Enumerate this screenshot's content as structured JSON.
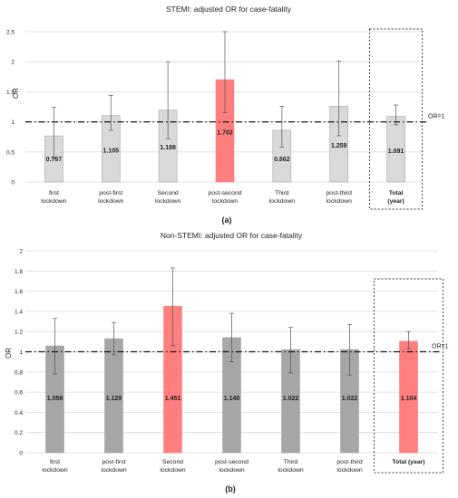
{
  "chart_data": [
    {
      "type": "bar",
      "panel_label": "(a)",
      "title": "STEMI: adjusted   OR for case-fatality",
      "ylabel": "OR",
      "ylim": [
        0,
        2.5
      ],
      "yticks": [
        "0",
        "0.5",
        "1",
        "1.5",
        "2",
        "2.5"
      ],
      "ytick_values": [
        0,
        0.5,
        1,
        1.5,
        2,
        2.5
      ],
      "categories": [
        [
          "first",
          "lockdown"
        ],
        [
          "post-first",
          "lockdown"
        ],
        [
          "Second",
          "lockdown"
        ],
        [
          "post-second",
          "lockdown"
        ],
        [
          "Third",
          "lockdown"
        ],
        [
          "post-third",
          "lockdown"
        ],
        [
          "Total",
          "(year)"
        ]
      ],
      "bold_categories": [
        6
      ],
      "values": [
        0.767,
        1.105,
        1.198,
        1.702,
        0.862,
        1.259,
        1.091
      ],
      "value_labels": [
        "0.767",
        "1.105",
        "1.198",
        "1.702",
        "0.862",
        "1.259",
        "1.091"
      ],
      "ci_low": [
        0.4,
        0.86,
        0.72,
        1.15,
        0.58,
        0.77,
        0.95
      ],
      "ci_high": [
        1.24,
        1.44,
        2.0,
        2.5,
        1.26,
        2.01,
        1.28
      ],
      "highlight": [
        3
      ],
      "boxed": [
        6
      ],
      "reference_line": {
        "value": 1,
        "label": "OR=1"
      },
      "colors": {
        "bar": "#d9d9d9",
        "bar_stroke": "#a6a6a6",
        "highlight": "#ff7f7f",
        "highlight_stroke": "#ff7f7f",
        "errbar": "#555555"
      }
    },
    {
      "type": "bar",
      "panel_label": "(b)",
      "title": "Non-STEMI: adjusted   OR for case-fatality",
      "ylabel": "OR",
      "ylim": [
        0,
        2
      ],
      "yticks": [
        "0",
        "0.2",
        "0.4",
        "0.6",
        "0.8",
        "1",
        "1.2",
        "1.4",
        "1.6",
        "1.8",
        "2"
      ],
      "ytick_values": [
        0,
        0.2,
        0.4,
        0.6,
        0.8,
        1,
        1.2,
        1.4,
        1.6,
        1.8,
        2
      ],
      "categories": [
        [
          "first",
          "lockdown"
        ],
        [
          "post-first",
          "lockdown"
        ],
        [
          "Second",
          "lockdown"
        ],
        [
          "post-second",
          "lockdown"
        ],
        [
          "Third",
          "lockdown"
        ],
        [
          "post-third",
          "lockdown"
        ],
        [
          "Total (year)"
        ]
      ],
      "bold_categories": [
        6
      ],
      "values": [
        1.058,
        1.129,
        1.451,
        1.14,
        1.022,
        1.022,
        1.104
      ],
      "value_labels": [
        "1.058",
        "1.129",
        "1.451",
        "1.140",
        "1.022",
        "1.022",
        "1.104"
      ],
      "ci_low": [
        0.78,
        0.97,
        1.06,
        0.9,
        0.79,
        0.77,
        1.03
      ],
      "ci_high": [
        1.33,
        1.29,
        1.83,
        1.38,
        1.24,
        1.27,
        1.2
      ],
      "highlight": [
        2,
        6
      ],
      "boxed": [
        6
      ],
      "reference_line": {
        "value": 1,
        "label": "OR=1"
      },
      "colors": {
        "bar": "#a6a6a6",
        "bar_stroke": "#a6a6a6",
        "highlight": "#ff7f7f",
        "highlight_stroke": "#ff7f7f",
        "errbar": "#555555"
      }
    }
  ]
}
